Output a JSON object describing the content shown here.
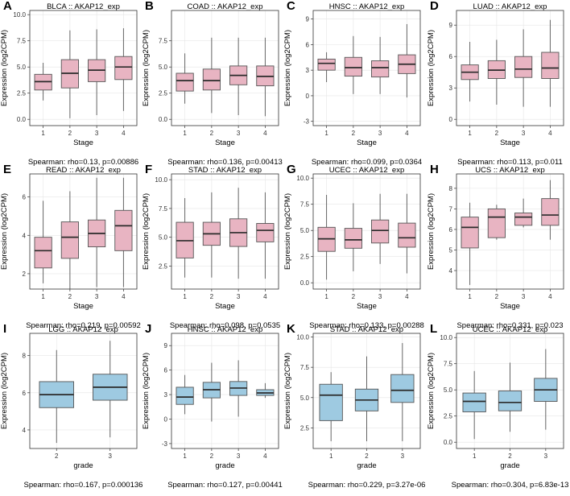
{
  "figure": {
    "ylabel": "Expression (log2CPM)",
    "colors": {
      "stage_box": "#e8b4c2",
      "grade_box": "#9ecae1",
      "stroke": "#555555",
      "median": "#2b2b2b",
      "grid": "#e6e6e6"
    }
  },
  "chart_data": [
    {
      "letter": "A",
      "type": "boxplot",
      "title": "BLCA  ::  AKAP12_exp",
      "xlabel": "Stage",
      "fill": "stage",
      "categories": [
        "1",
        "2",
        "3",
        "4"
      ],
      "ylim": [
        -0.6,
        10.4
      ],
      "yticks": [
        0,
        2.5,
        5,
        7.5,
        10
      ],
      "ytick_labels": [
        "0.0",
        "2.5",
        "5.0",
        "7.5",
        "10.0"
      ],
      "boxes": [
        {
          "min": 1.8,
          "q1": 2.8,
          "median": 3.6,
          "q3": 4.3,
          "max": 5.4
        },
        {
          "min": 0.1,
          "q1": 3.0,
          "median": 4.4,
          "q3": 5.7,
          "max": 8.5
        },
        {
          "min": 0.4,
          "q1": 3.6,
          "median": 4.7,
          "q3": 5.7,
          "max": 8.6
        },
        {
          "min": 0.8,
          "q1": 3.8,
          "median": 5.0,
          "q3": 6.0,
          "max": 8.7
        }
      ],
      "stat": "Spearman: rho=0.13, p=0.00886"
    },
    {
      "letter": "B",
      "type": "boxplot",
      "title": "COAD  ::  AKAP12_exp",
      "xlabel": "Stage",
      "fill": "stage",
      "categories": [
        "1",
        "2",
        "3",
        "4"
      ],
      "ylim": [
        -0.6,
        10.4
      ],
      "yticks": [
        0,
        2.5,
        5,
        7.5
      ],
      "ytick_labels": [
        "0.0",
        "2.5",
        "5.0",
        "7.5"
      ],
      "boxes": [
        {
          "min": 1.5,
          "q1": 2.7,
          "median": 3.7,
          "q3": 4.4,
          "max": 6.3
        },
        {
          "min": 0.6,
          "q1": 2.8,
          "median": 3.7,
          "q3": 4.8,
          "max": 7.8
        },
        {
          "min": 0.4,
          "q1": 3.3,
          "median": 4.2,
          "q3": 5.1,
          "max": 7.8
        },
        {
          "min": 0.3,
          "q1": 3.2,
          "median": 4.1,
          "q3": 5.1,
          "max": 7.8
        }
      ],
      "stat": "Spearman: rho=0.136, p=0.00413"
    },
    {
      "letter": "C",
      "type": "boxplot",
      "title": "HNSC  ::  AKAP12_exp",
      "xlabel": "Stage",
      "fill": "stage",
      "categories": [
        "1",
        "2",
        "3",
        "4"
      ],
      "ylim": [
        -3.5,
        10
      ],
      "yticks": [
        -3,
        0,
        3,
        6,
        9
      ],
      "ytick_labels": [
        "-3",
        "0",
        "3",
        "6",
        "9"
      ],
      "boxes": [
        {
          "min": 1.6,
          "q1": 3.0,
          "median": 3.8,
          "q3": 4.3,
          "max": 5.1
        },
        {
          "min": 0.2,
          "q1": 2.3,
          "median": 3.3,
          "q3": 4.5,
          "max": 7.0
        },
        {
          "min": 0.2,
          "q1": 2.2,
          "median": 3.3,
          "q3": 4.1,
          "max": 6.9
        },
        {
          "min": -0.2,
          "q1": 2.6,
          "median": 3.7,
          "q3": 4.8,
          "max": 8.4
        }
      ],
      "stat": "Spearman: rho=0.099, p=0.0364"
    },
    {
      "letter": "D",
      "type": "boxplot",
      "title": "LUAD  ::  AKAP12_exp",
      "xlabel": "Stage",
      "fill": "stage",
      "categories": [
        "1",
        "2",
        "3",
        "4"
      ],
      "ylim": [
        -0.6,
        10.4
      ],
      "yticks": [
        0,
        3,
        6,
        9
      ],
      "ytick_labels": [
        "0",
        "3",
        "6",
        "9"
      ],
      "boxes": [
        {
          "min": 1.7,
          "q1": 3.8,
          "median": 4.5,
          "q3": 5.2,
          "max": 7.4
        },
        {
          "min": 1.4,
          "q1": 3.9,
          "median": 4.7,
          "q3": 5.6,
          "max": 7.6
        },
        {
          "min": 1.2,
          "q1": 4.0,
          "median": 4.8,
          "q3": 6.0,
          "max": 8.6
        },
        {
          "min": 1.2,
          "q1": 3.9,
          "median": 4.9,
          "q3": 6.4,
          "max": 9.5
        }
      ],
      "stat": "Spearman: rho=0.113, p=0.011"
    },
    {
      "letter": "E",
      "type": "boxplot",
      "title": "READ  ::  AKAP12_exp",
      "xlabel": "Stage",
      "fill": "stage",
      "categories": [
        "1",
        "2",
        "3",
        "4"
      ],
      "ylim": [
        1.2,
        7.2
      ],
      "yticks": [
        2,
        4,
        6
      ],
      "ytick_labels": [
        "2",
        "4",
        "6"
      ],
      "boxes": [
        {
          "min": 1.5,
          "q1": 2.3,
          "median": 3.2,
          "q3": 3.9,
          "max": 5.8
        },
        {
          "min": 1.2,
          "q1": 2.8,
          "median": 3.9,
          "q3": 4.7,
          "max": 6.3
        },
        {
          "min": 1.3,
          "q1": 3.4,
          "median": 4.1,
          "q3": 4.8,
          "max": 7.0
        },
        {
          "min": 1.3,
          "q1": 3.2,
          "median": 4.5,
          "q3": 5.3,
          "max": 7.0
        }
      ],
      "stat": "Spearman: rho=0.219, p=0.00592"
    },
    {
      "letter": "F",
      "type": "boxplot",
      "title": "STAD  ::  AKAP12_exp",
      "xlabel": "Stage",
      "fill": "stage",
      "categories": [
        "1",
        "2",
        "3",
        "4"
      ],
      "ylim": [
        0.5,
        10.5
      ],
      "yticks": [
        2.5,
        5,
        7.5,
        10
      ],
      "ytick_labels": [
        "2.5",
        "5.0",
        "7.5",
        "10.0"
      ],
      "boxes": [
        {
          "min": 1.5,
          "q1": 3.2,
          "median": 4.7,
          "q3": 6.3,
          "max": 8.4
        },
        {
          "min": 1.5,
          "q1": 4.3,
          "median": 5.3,
          "q3": 6.3,
          "max": 8.9
        },
        {
          "min": 1.4,
          "q1": 4.2,
          "median": 5.4,
          "q3": 6.6,
          "max": 9.3
        },
        {
          "min": 1.4,
          "q1": 4.6,
          "median": 5.6,
          "q3": 6.2,
          "max": 8.9
        }
      ],
      "stat": "Spearman: rho=0.098, p=0.0535"
    },
    {
      "letter": "G",
      "type": "boxplot",
      "title": "UCEC  ::  AKAP12_exp",
      "xlabel": "Stage",
      "fill": "stage",
      "categories": [
        "1",
        "2",
        "3",
        "4"
      ],
      "ylim": [
        -0.6,
        10.4
      ],
      "yticks": [
        0,
        2.5,
        5,
        7.5,
        10
      ],
      "ytick_labels": [
        "0.0",
        "2.5",
        "5.0",
        "7.5",
        "10.0"
      ],
      "boxes": [
        {
          "min": 0.3,
          "q1": 3.0,
          "median": 4.2,
          "q3": 5.3,
          "max": 8.4
        },
        {
          "min": 1.1,
          "q1": 3.3,
          "median": 4.1,
          "q3": 5.2,
          "max": 7.6
        },
        {
          "min": 1.8,
          "q1": 3.8,
          "median": 5.0,
          "q3": 6.0,
          "max": 8.5
        },
        {
          "min": 0.9,
          "q1": 3.4,
          "median": 4.3,
          "q3": 5.7,
          "max": 8.5
        }
      ],
      "stat": "Spearman: rho=0.133, p=0.00288"
    },
    {
      "letter": "H",
      "type": "boxplot",
      "title": "UCS  ::  AKAP12_exp",
      "xlabel": "Stage",
      "fill": "stage",
      "categories": [
        "1",
        "2",
        "3",
        "4"
      ],
      "ylim": [
        3.1,
        8.7
      ],
      "yticks": [
        4,
        5,
        6,
        7,
        8
      ],
      "ytick_labels": [
        "4",
        "5",
        "6",
        "7",
        "8"
      ],
      "boxes": [
        {
          "min": 3.3,
          "q1": 5.1,
          "median": 6.1,
          "q3": 6.6,
          "max": 7.3
        },
        {
          "min": 5.5,
          "q1": 5.6,
          "median": 6.6,
          "q3": 7.0,
          "max": 7.2
        },
        {
          "min": 6.1,
          "q1": 6.2,
          "median": 6.6,
          "q3": 6.8,
          "max": 7.5
        },
        {
          "min": 5.5,
          "q1": 6.2,
          "median": 6.7,
          "q3": 7.5,
          "max": 8.4
        }
      ],
      "stat": "Spearman: rho=0.331, p=0.023"
    },
    {
      "letter": "I",
      "type": "boxplot",
      "title": "LGG  ::  AKAP12_exp",
      "xlabel": "grade",
      "fill": "grade",
      "categories": [
        "2",
        "3"
      ],
      "ylim": [
        3,
        9.2
      ],
      "yticks": [
        4,
        6,
        8
      ],
      "ytick_labels": [
        "4",
        "6",
        "8"
      ],
      "boxes": [
        {
          "min": 3.3,
          "q1": 5.2,
          "median": 5.9,
          "q3": 6.6,
          "max": 8.3
        },
        {
          "min": 3.6,
          "q1": 5.6,
          "median": 6.3,
          "q3": 7.0,
          "max": 8.8
        }
      ],
      "stat": "Spearman: rho=0.167, p=0.000136"
    },
    {
      "letter": "J",
      "type": "boxplot",
      "title": "HNSC  ::  AKAP12_exp",
      "xlabel": "grade",
      "fill": "grade",
      "categories": [
        "1",
        "2",
        "3",
        "4"
      ],
      "ylim": [
        -3.6,
        10.5
      ],
      "yticks": [
        -3,
        0,
        3,
        6,
        9
      ],
      "ytick_labels": [
        "-3",
        "0",
        "3",
        "6",
        "9"
      ],
      "boxes": [
        {
          "min": 0.6,
          "q1": 1.8,
          "median": 2.7,
          "q3": 3.9,
          "max": 5.4
        },
        {
          "min": -0.3,
          "q1": 2.6,
          "median": 3.6,
          "q3": 4.5,
          "max": 6.9
        },
        {
          "min": 0.3,
          "q1": 2.9,
          "median": 3.8,
          "q3": 4.6,
          "max": 7.2
        },
        {
          "min": 2.6,
          "q1": 2.9,
          "median": 3.2,
          "q3": 3.6,
          "max": 4.4
        }
      ],
      "stat": "Spearman: rho=0.127, p=0.00441"
    },
    {
      "letter": "K",
      "type": "boxplot",
      "title": "STAD  ::  AKAP12_exp",
      "xlabel": "grade",
      "fill": "grade",
      "categories": [
        "1",
        "2",
        "3"
      ],
      "ylim": [
        0.8,
        10.3
      ],
      "yticks": [
        2.5,
        5,
        7.5,
        10
      ],
      "ytick_labels": [
        "2.5",
        "5.0",
        "7.5",
        "10.0"
      ],
      "boxes": [
        {
          "min": 1.4,
          "q1": 3.1,
          "median": 5.2,
          "q3": 6.1,
          "max": 7.1
        },
        {
          "min": 1.4,
          "q1": 3.9,
          "median": 4.8,
          "q3": 5.7,
          "max": 8.4
        },
        {
          "min": 1.4,
          "q1": 4.6,
          "median": 5.6,
          "q3": 6.9,
          "max": 9.5
        }
      ],
      "stat": "Spearman: rho=0.229, p=3.27e-06"
    },
    {
      "letter": "L",
      "type": "boxplot",
      "title": "UCEC  ::  AKAP12_exp",
      "xlabel": "grade",
      "fill": "grade",
      "categories": [
        "1",
        "2",
        "3"
      ],
      "ylim": [
        -0.6,
        10.4
      ],
      "yticks": [
        0,
        2.5,
        5,
        7.5,
        10
      ],
      "ytick_labels": [
        "0.0",
        "2.5",
        "5.0",
        "7.5",
        "10.0"
      ],
      "boxes": [
        {
          "min": 0.3,
          "q1": 2.9,
          "median": 3.9,
          "q3": 4.7,
          "max": 6.8
        },
        {
          "min": 1.0,
          "q1": 3.0,
          "median": 3.8,
          "q3": 4.9,
          "max": 7.6
        },
        {
          "min": 1.2,
          "q1": 3.9,
          "median": 5.0,
          "q3": 6.1,
          "max": 8.9
        }
      ],
      "stat": "Spearman: rho=0.304, p=6.83e-13"
    }
  ]
}
